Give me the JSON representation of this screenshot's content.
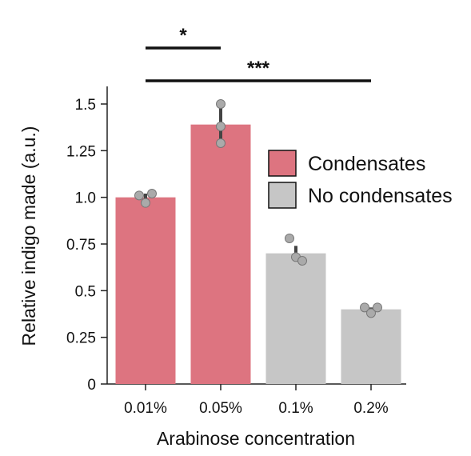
{
  "chart_data": {
    "type": "bar",
    "xlabel": "Arabinose concentration",
    "ylabel": "Relative indigo made (a.u.)",
    "ylim": [
      0,
      1.5
    ],
    "yticks": [
      0,
      0.25,
      0.5,
      0.75,
      1.0,
      1.25,
      1.5
    ],
    "ytick_labels": [
      "0",
      "0.25",
      "0.5",
      "0.75",
      "1.0",
      "1.25",
      "1.5"
    ],
    "categories": [
      "0.01%",
      "0.05%",
      "0.1%",
      "0.2%"
    ],
    "values": [
      1.0,
      1.39,
      0.7,
      0.4
    ],
    "groups": [
      "Condensates",
      "Condensates",
      "No condensates",
      "No condensates"
    ],
    "error_low": [
      0.97,
      1.29,
      0.66,
      0.39
    ],
    "error_high": [
      1.02,
      1.49,
      0.74,
      0.41
    ],
    "replicates": [
      [
        1.01,
        0.97,
        1.02
      ],
      [
        1.5,
        1.38,
        1.29
      ],
      [
        0.78,
        0.68,
        0.66
      ],
      [
        0.41,
        0.38,
        0.41
      ]
    ],
    "legend": {
      "placement": "right",
      "entries": [
        {
          "label": "Condensates",
          "color": "#dd7480"
        },
        {
          "label": "No condensates",
          "color": "#c6c6c6"
        }
      ]
    },
    "significance": [
      {
        "from": "0.01%",
        "to": "0.05%",
        "label": "*"
      },
      {
        "from": "0.01%",
        "to": "0.2%",
        "label": "***"
      }
    ],
    "grid": false
  },
  "colors": {
    "condensates": "#dd7480",
    "no_condensates": "#c6c6c6",
    "point": "#aaaaaa",
    "error": "#444444"
  }
}
